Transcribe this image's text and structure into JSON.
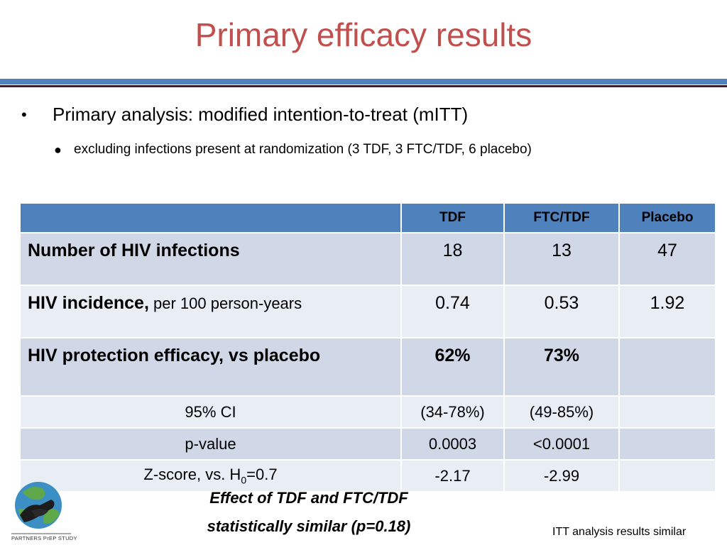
{
  "title": "Primary efficacy results",
  "bullets": {
    "primary": "Primary analysis: modified intention-to-treat (mITT)",
    "sub": "excluding infections present at randomization (3 TDF, 3 FTC/TDF, 6 placebo)"
  },
  "table": {
    "headers": [
      "",
      "TDF",
      "FTC/TDF",
      "Placebo"
    ],
    "rows": {
      "infections": {
        "label": "Number of HIV infections",
        "tdf": "18",
        "ftc": "13",
        "placebo": "47"
      },
      "incidence": {
        "label_bold": "HIV incidence,",
        "label_normal": " per 100 person-years",
        "tdf": "0.74",
        "ftc": "0.53",
        "placebo": "1.92"
      },
      "efficacy": {
        "label": "HIV protection efficacy, vs placebo",
        "tdf": "62%",
        "ftc": "73%",
        "placebo": ""
      },
      "ci": {
        "label": "95% CI",
        "tdf": "(34-78%)",
        "ftc": "(49-85%)",
        "placebo": ""
      },
      "pvalue": {
        "label": "p-value",
        "tdf": "0.0003",
        "ftc": "<0.0001",
        "placebo": ""
      },
      "zscore": {
        "label_pre": "Z-score, vs. H",
        "label_sub": "0",
        "label_post": "=0.7",
        "tdf": "-2.17",
        "ftc": "-2.99",
        "placebo": ""
      }
    }
  },
  "note": {
    "line1": "Effect of TDF and FTC/TDF",
    "line2": "statistically similar (p=0.18)"
  },
  "logo_text": "PARTNERS PrEP STUDY",
  "itt_note": "ITT analysis results similar",
  "colors": {
    "title": "#c0504d",
    "header": "#4f81bd",
    "row_dark": "#d0d8e8",
    "row_light": "#e9edf4"
  }
}
